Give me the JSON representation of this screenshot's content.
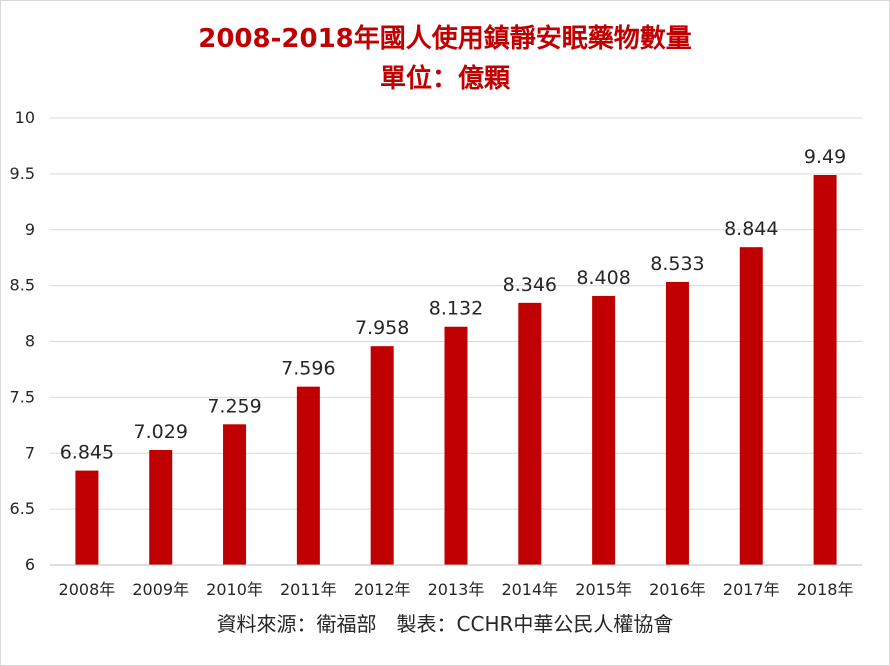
{
  "chart_data": {
    "type": "bar",
    "title": "2008-2018年國人使用鎮靜安眠藥物數量",
    "subtitle": "單位：億顆",
    "categories": [
      "2008年",
      "2009年",
      "2010年",
      "2011年",
      "2012年",
      "2013年",
      "2014年",
      "2015年",
      "2016年",
      "2017年",
      "2018年"
    ],
    "values": [
      6.845,
      7.029,
      7.259,
      7.596,
      7.958,
      8.132,
      8.346,
      8.408,
      8.533,
      8.844,
      9.49
    ],
    "data_labels": [
      "6.845",
      "7.029",
      "7.259",
      "7.596",
      "7.958",
      "8.132",
      "8.346",
      "8.408",
      "8.533",
      "8.844",
      "9.49"
    ],
    "ylim": [
      6,
      10
    ],
    "yticks": [
      "6",
      "6.5",
      "7",
      "7.5",
      "8",
      "8.5",
      "9",
      "9.5",
      "10"
    ],
    "grid": true,
    "bar_color": "#C00000",
    "source_note": "資料來源：衛福部　製表：CCHR中華公民人權協會"
  }
}
